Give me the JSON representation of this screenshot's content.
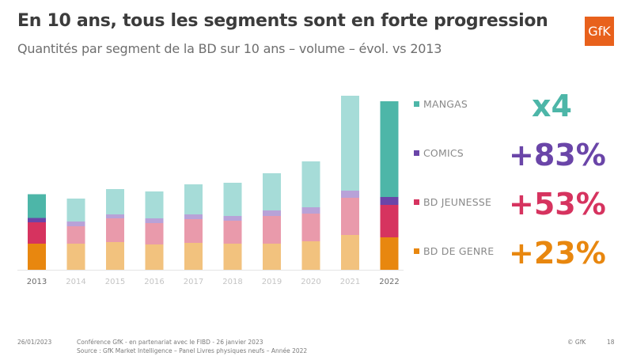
{
  "header": {
    "title": "En 10 ans, tous les segments sont en forte progression",
    "subtitle": "Quantités par segment de la BD sur 10 ans – volume – évol. vs 2013",
    "logo_text": "GfK",
    "logo_color": "#e8611c"
  },
  "chart_data": {
    "type": "bar",
    "stacked": true,
    "title": "Quantités par segment de la BD sur 10 ans – volume – évol. vs 2013",
    "xlabel": "",
    "ylabel": "",
    "units": "relative volume (no axis printed)",
    "grid": false,
    "legend_position": "right",
    "categories": [
      "2013",
      "2014",
      "2015",
      "2016",
      "2017",
      "2018",
      "2019",
      "2020",
      "2021",
      "2022"
    ],
    "highlighted_categories": [
      "2013",
      "2022"
    ],
    "series": [
      {
        "name": "BD DE GENRE",
        "color": "#e8870f",
        "faded_color": "#f2c27e",
        "values": [
          33,
          33,
          35,
          32,
          34,
          33,
          33,
          36,
          44,
          41
        ]
      },
      {
        "name": "BD JEUNESSE",
        "color": "#d6335f",
        "faded_color": "#e99aab",
        "values": [
          27,
          22,
          30,
          27,
          30,
          29,
          35,
          35,
          47,
          41
        ]
      },
      {
        "name": "COMICS",
        "color": "#6a45a8",
        "faded_color": "#b8a2d8",
        "values": [
          5.5,
          6,
          5,
          6,
          6,
          6,
          7,
          8,
          9,
          10
        ]
      },
      {
        "name": "MANGAS",
        "color": "#4db6a8",
        "faded_color": "#a6dcd8",
        "values": [
          30,
          29,
          32,
          34,
          38,
          42,
          47,
          58,
          120,
          121
        ]
      }
    ],
    "ylim": [
      0,
      230
    ],
    "annotations": [
      {
        "series": "MANGAS",
        "text": "x4",
        "color": "#4db6a8"
      },
      {
        "series": "COMICS",
        "text": "+83%",
        "color": "#6a45a8"
      },
      {
        "series": "BD JEUNESSE",
        "text": "+53%",
        "color": "#d6335f"
      },
      {
        "series": "BD DE GENRE",
        "text": "+23%",
        "color": "#e8870f"
      }
    ]
  },
  "legend": [
    {
      "label": "MANGAS",
      "color": "#4db6a8",
      "growth": "x4"
    },
    {
      "label": "COMICS",
      "color": "#6a45a8",
      "growth": "+83%"
    },
    {
      "label": "BD JEUNESSE",
      "color": "#d6335f",
      "growth": "+53%"
    },
    {
      "label": "BD DE GENRE",
      "color": "#e8870f",
      "growth": "+23%"
    }
  ],
  "footer": {
    "date": "26/01/2023",
    "conference": "Conférence GfK - en partenariat avec le FIBD - 26 janvier 2023",
    "source": "Source : GfK Market Intelligence – Panel Livres physiques neufs – Année 2022",
    "copyright": "© GfK",
    "page_number": "18"
  }
}
